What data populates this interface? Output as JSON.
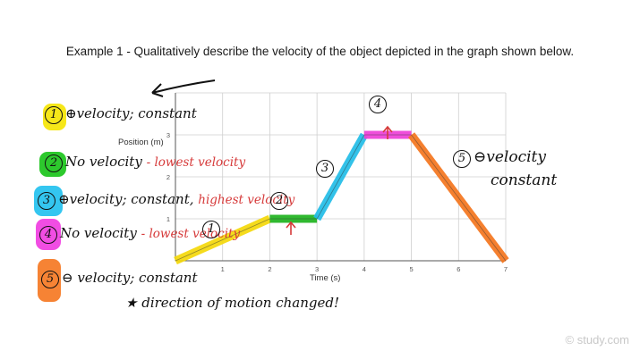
{
  "title": "Example 1 - Qualitatively describe the velocity of the object depicted in the graph shown below.",
  "chart_data": {
    "type": "line",
    "ylabel": "Position (m)",
    "xlabel": "Time (s)",
    "xlim": [
      0,
      7
    ],
    "ylim": [
      0,
      4
    ],
    "x_ticks": [
      "1",
      "2",
      "3",
      "4",
      "5",
      "6",
      "7"
    ],
    "y_ticks": [
      "1",
      "2",
      "3"
    ],
    "grid": true,
    "x": [
      0,
      2,
      3,
      4,
      5,
      7
    ],
    "y": [
      0,
      1,
      1,
      3,
      3,
      0
    ],
    "segment_colors": [
      "#f5d90a",
      "#1fb41f",
      "#22bde8",
      "#ee3fd8",
      "#f5761e"
    ]
  },
  "colors": {
    "yellow": "#f5e400",
    "green": "#16c316",
    "cyan": "#1ec0ee",
    "magenta": "#f03ae0",
    "orange": "#f5761e"
  },
  "notes": [
    {
      "num": "1",
      "text": "⊕velocity; constant"
    },
    {
      "num": "2",
      "text": "No velocity",
      "red": "- lowest velocity"
    },
    {
      "num": "3",
      "text": "⊕velocity; constant,",
      "red": "highest velocity"
    },
    {
      "num": "4",
      "text": "No velocity",
      "red": "- lowest velocity"
    },
    {
      "num": "5",
      "text": "⊖ velocity; constant"
    }
  ],
  "direction_note": "★ direction of motion changed!",
  "graph_labels": {
    "l1": "1",
    "l2": "2",
    "l3": "3",
    "l4": "4",
    "l5": "5",
    "l5_text1": "⊖velocity",
    "l5_text2": "constant"
  },
  "watermark": "© study.com"
}
